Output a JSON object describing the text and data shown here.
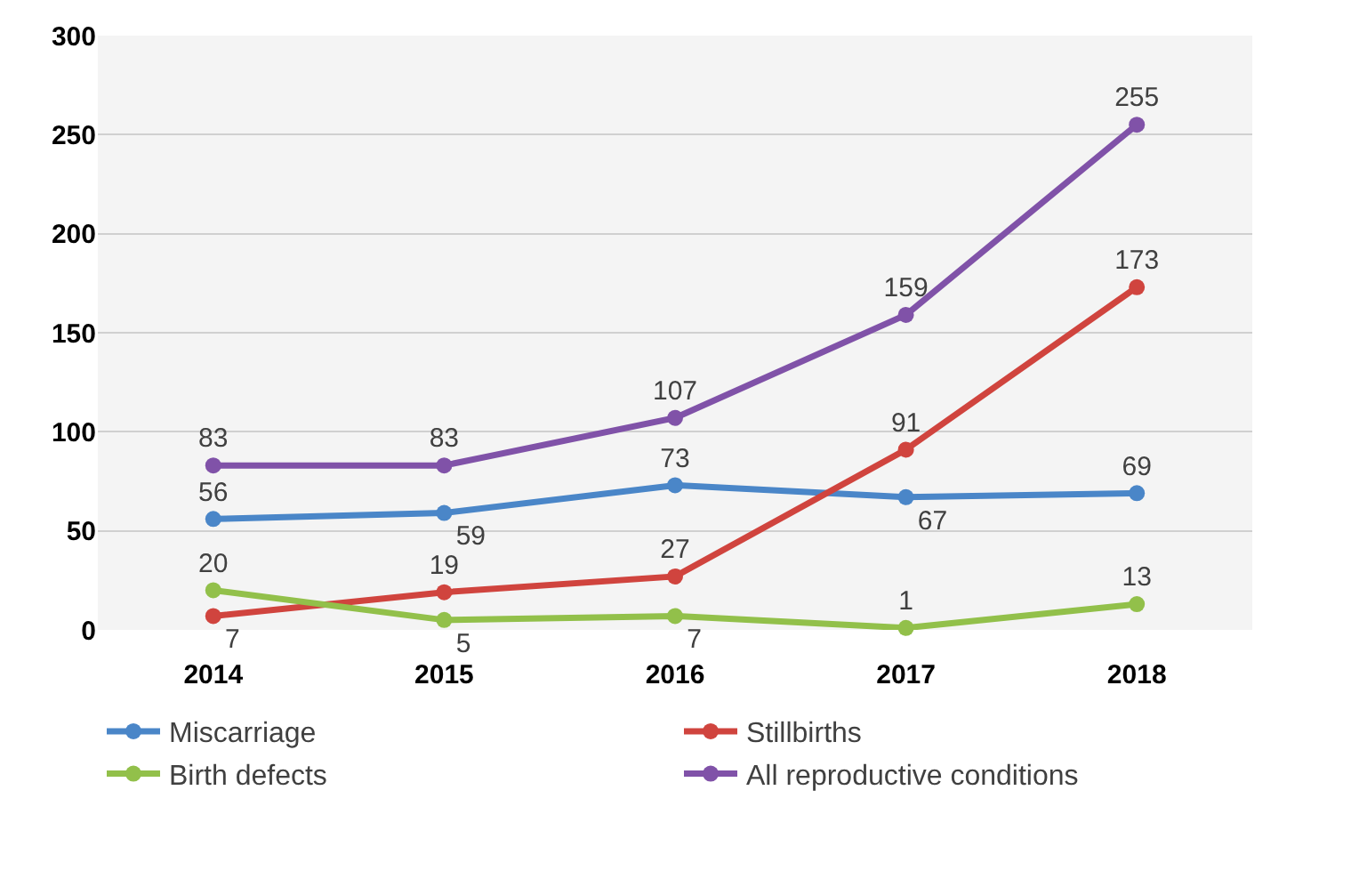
{
  "chart_data": {
    "type": "line",
    "categories": [
      "2014",
      "2015",
      "2016",
      "2017",
      "2018"
    ],
    "series": [
      {
        "name": "Miscarriage",
        "color": "#4a86c8",
        "values": [
          56,
          59,
          73,
          67,
          69
        ]
      },
      {
        "name": "Stillbirths",
        "color": "#d0443e",
        "values": [
          7,
          19,
          27,
          91,
          173
        ]
      },
      {
        "name": "Birth defects",
        "color": "#92c04a",
        "values": [
          20,
          5,
          7,
          1,
          13
        ]
      },
      {
        "name": "All reproductive conditions",
        "color": "#8052a8",
        "values": [
          83,
          83,
          107,
          159,
          255
        ]
      }
    ],
    "ylim": [
      0,
      300
    ],
    "yticks": [
      0,
      50,
      100,
      150,
      200,
      250,
      300
    ],
    "grid": "y",
    "legend": "bottom",
    "marker": "circle",
    "line_style": "solid",
    "data_labels": true
  }
}
